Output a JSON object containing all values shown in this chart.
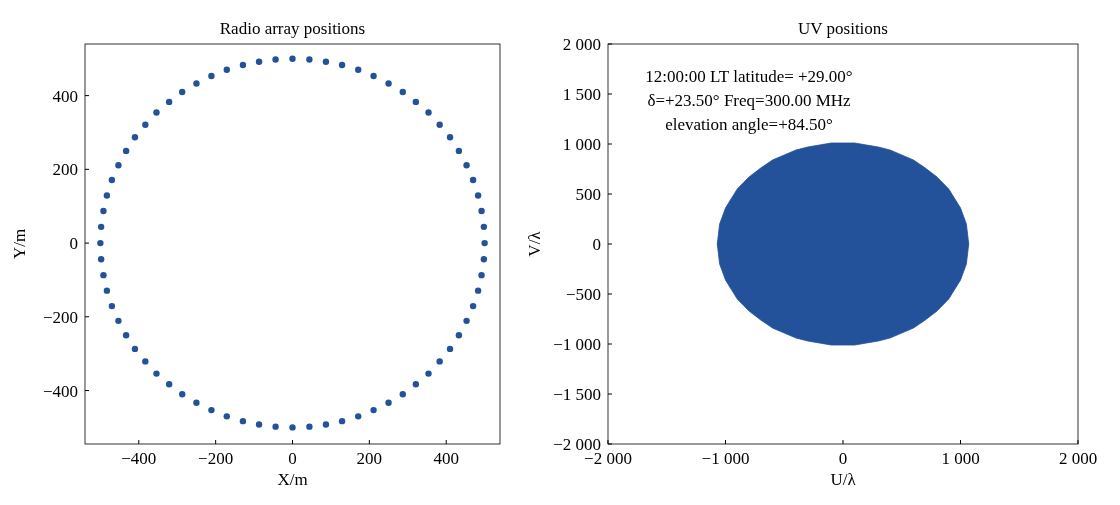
{
  "chart_data": [
    {
      "type": "scatter",
      "title": "Radio array positions",
      "xlabel": "X/m",
      "ylabel": "Y/m",
      "marker": "circle",
      "xlim": [
        -540,
        540
      ],
      "ylim": [
        -545,
        540
      ],
      "xticks": [
        {
          "value": -400,
          "label": "−400"
        },
        {
          "value": -200,
          "label": "−200"
        },
        0,
        200,
        400
      ],
      "yticks": [
        {
          "value": -400,
          "label": "−400"
        },
        {
          "value": -200,
          "label": "−200"
        },
        0,
        200,
        400
      ],
      "series": [
        {
          "color": "#23519a",
          "x": [
            500,
            498,
            492,
            483,
            470,
            453,
            433,
            410,
            383,
            354,
            321,
            287,
            250,
            211,
            171,
            129,
            87,
            44,
            0,
            -44,
            -87,
            -129,
            -171,
            -211,
            -250,
            -287,
            -321,
            -354,
            -383,
            -410,
            -433,
            -453,
            -470,
            -483,
            -492,
            -498,
            -500,
            -498,
            -492,
            -483,
            -470,
            -453,
            -433,
            -410,
            -383,
            -354,
            -321,
            -287,
            -250,
            -211,
            -171,
            -129,
            -87,
            -44,
            0,
            44,
            87,
            129,
            171,
            211,
            250,
            287,
            321,
            354,
            383,
            410,
            433,
            453,
            470,
            483,
            492,
            498
          ],
          "values": [
            0,
            44,
            87,
            129,
            171,
            211,
            250,
            287,
            321,
            354,
            383,
            410,
            433,
            453,
            470,
            483,
            492,
            498,
            500,
            498,
            492,
            483,
            470,
            453,
            433,
            410,
            383,
            354,
            321,
            287,
            250,
            211,
            171,
            129,
            87,
            44,
            0,
            -44,
            -87,
            -129,
            -171,
            -211,
            -250,
            -287,
            -321,
            -354,
            -383,
            -410,
            -433,
            -453,
            -470,
            -483,
            -492,
            -498,
            -500,
            -498,
            -492,
            -483,
            -470,
            -453,
            -433,
            -410,
            -383,
            -354,
            -321,
            -287,
            -250,
            -211,
            -171,
            -129,
            -87,
            -44
          ]
        }
      ]
    },
    {
      "type": "area",
      "title": "UV positions",
      "xlabel": "U/λ",
      "ylabel": "V/λ",
      "annotations": [
        "12:00:00 LT latitude= +29.00°",
        "δ=+23.50° Freq=300.00 MHz",
        "elevation angle=+84.50°"
      ],
      "xlim": [
        -2000,
        2000
      ],
      "ylim": [
        -2000,
        2000
      ],
      "xticks": [
        {
          "value": -2000,
          "label": "−2 000"
        },
        {
          "value": -1000,
          "label": "−1 000"
        },
        0,
        {
          "value": 1000,
          "label": "1 000"
        },
        {
          "value": 2000,
          "label": "2 000"
        }
      ],
      "yticks": [
        {
          "value": -2000,
          "label": "−2 000"
        },
        {
          "value": -1500,
          "label": "−1 500"
        },
        {
          "value": -1000,
          "label": "−1 000"
        },
        {
          "value": -500,
          "label": "−500"
        },
        0,
        500,
        {
          "value": 1000,
          "label": "1 000"
        },
        {
          "value": 1500,
          "label": "1 500"
        },
        {
          "value": 2000,
          "label": "2 000"
        }
      ],
      "series": [
        {
          "color": "#23519a",
          "x": [
            -1070,
            -1050,
            -1000,
            -900,
            -800,
            -700,
            -600,
            -500,
            -400,
            -300,
            -200,
            -100,
            0,
            100,
            200,
            300,
            400,
            500,
            600,
            700,
            800,
            900,
            1000,
            1050,
            1070
          ],
          "values": [
            0,
            200,
            360,
            550,
            670,
            760,
            840,
            890,
            940,
            970,
            990,
            1010,
            1010,
            1010,
            990,
            970,
            940,
            890,
            840,
            760,
            670,
            550,
            360,
            200,
            0
          ]
        },
        {
          "color": "#23519a",
          "x": [
            -1070,
            -1050,
            -1000,
            -900,
            -800,
            -700,
            -600,
            -500,
            -400,
            -300,
            -200,
            -100,
            0,
            100,
            200,
            300,
            400,
            500,
            600,
            700,
            800,
            900,
            1000,
            1050,
            1070
          ],
          "values": [
            0,
            -200,
            -360,
            -550,
            -670,
            -760,
            -840,
            -890,
            -940,
            -970,
            -990,
            -1010,
            -1010,
            -1010,
            -990,
            -970,
            -940,
            -890,
            -840,
            -760,
            -670,
            -550,
            -360,
            -200,
            0
          ]
        }
      ]
    }
  ]
}
